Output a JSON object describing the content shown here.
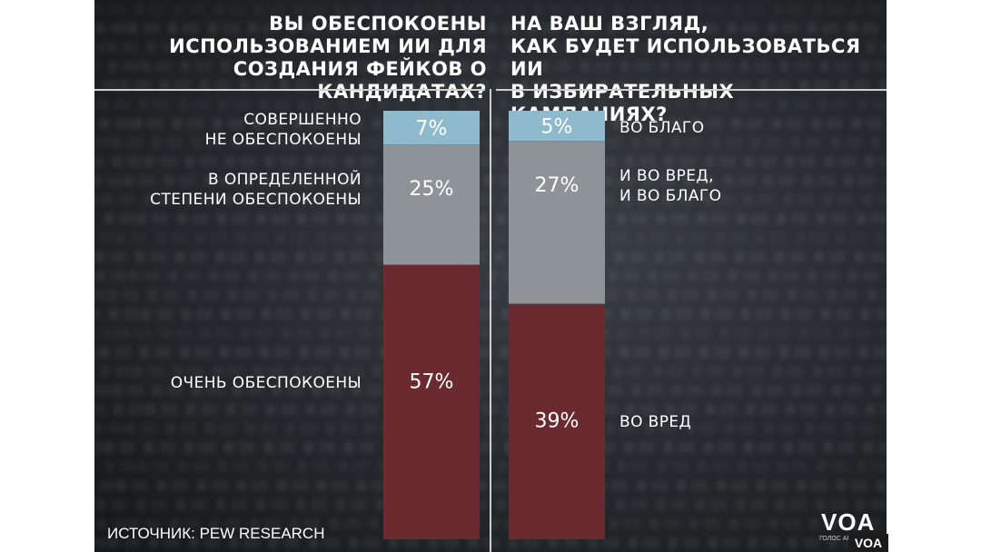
{
  "headings": {
    "left": [
      "ВЫ ОБЕСПОКОЕНЫ",
      "ИСПОЛЬЗОВАНИЕМ ИИ ДЛЯ",
      "СОЗДАНИЯ ФЕЙКОВ О КАНДИДАТАХ?"
    ],
    "right": [
      "НА ВАШ ВЗГЛЯД,",
      "КАК БУДЕТ ИСПОЛЬЗОВАТЬСЯ ИИ",
      "В ИЗБИРАТЕЛЬНЫХ КАМПАНИЯХ?"
    ]
  },
  "source": "ИСТОЧНИК: PEW RESEARCH",
  "logo": {
    "text": "VOA",
    "subtitle": "ГОЛОС АМЕРИКИ",
    "badge": "VOA"
  },
  "colors": {
    "blue": "#8fb9cc",
    "gray": "#8e9397",
    "red": "#6b2a2f"
  },
  "chart_data": [
    {
      "type": "bar",
      "stacked": true,
      "segments": [
        {
          "category": [
            "СОВЕРШЕННО",
            "НЕ ОБЕСПОКОЕНЫ"
          ],
          "value": 7,
          "label": "7%",
          "color": "#8fb9cc"
        },
        {
          "category": [
            "В ОПРЕДЕЛЕННОЙ",
            "СТЕПЕНИ ОБЕСПОКОЕНЫ"
          ],
          "value": 25,
          "label": "25%",
          "color": "#8e9397"
        },
        {
          "category": [
            "ОЧЕНЬ ОБЕСПОКОЕНЫ"
          ],
          "value": 57,
          "label": "57%",
          "color": "#6b2a2f"
        }
      ]
    },
    {
      "type": "bar",
      "stacked": true,
      "segments": [
        {
          "category": [
            "ВО БЛАГО"
          ],
          "value": 5,
          "label": "5%",
          "color": "#8fb9cc"
        },
        {
          "category": [
            "И ВО ВРЕД,",
            "И ВО БЛАГО"
          ],
          "value": 27,
          "label": "27%",
          "color": "#8e9397"
        },
        {
          "category": [
            "ВО ВРЕД"
          ],
          "value": 39,
          "label": "39%",
          "color": "#6b2a2f"
        }
      ]
    }
  ]
}
